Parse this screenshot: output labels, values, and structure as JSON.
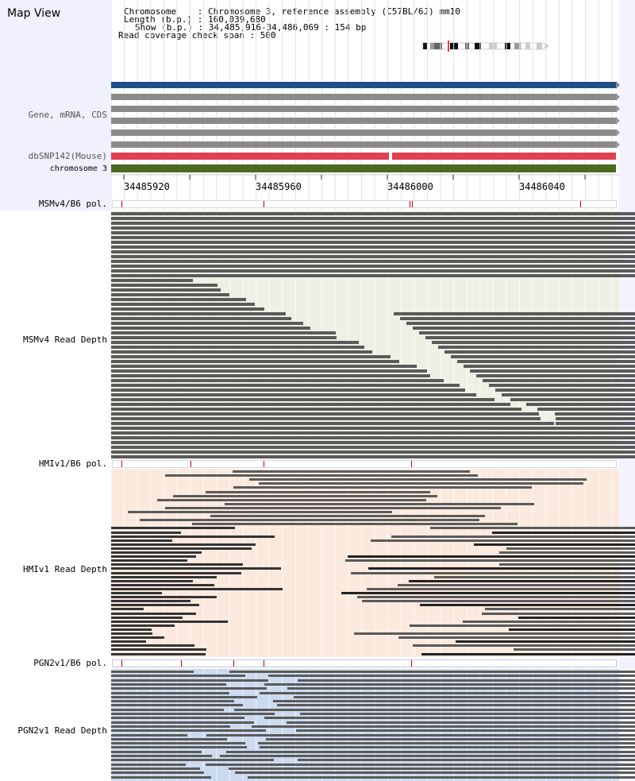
{
  "map_title": "Map View",
  "info": {
    "chromosome_line": "Chromosome    : Chromosome 3, reference assembly (C57BL/6J) mm10",
    "length_line": "Length (b.p.) : 160,039,680",
    "show_line": "Show (b.p.) : 34,485,916-34,486,069 : 154 bp",
    "span_line": "Read coverage check span : 500"
  },
  "track_labels": {
    "gene": "Gene, mRNA, CDS",
    "dbsnp": "dbSNP142(Mouse)",
    "chrom": "chromosome 3",
    "msm_pol": "MSMv4/B6 pol.",
    "msm_depth": "MSMv4 Read Depth",
    "hmi_pol": "HMIv1/B6 pol.",
    "hmi_depth": "HMIv1 Read Depth",
    "pgn_pol": "PGN2v1/B6 pol.",
    "pgn_depth": "PGN2v1 Read Depth"
  },
  "ruler": {
    "ticks": [
      "34485920",
      "34485960",
      "34486000",
      "34486040"
    ]
  },
  "colors": {
    "gene_blue": "#1f4e86",
    "gene_gray": "#8a8a8a",
    "snp_red": "#e04050",
    "chrom_green": "#4a6a20",
    "msm_bg": "#edf1e4",
    "hmi_bg": "#fbe9de",
    "pgn_bg": "#ccdaef",
    "read": "#5a5a5a"
  }
}
